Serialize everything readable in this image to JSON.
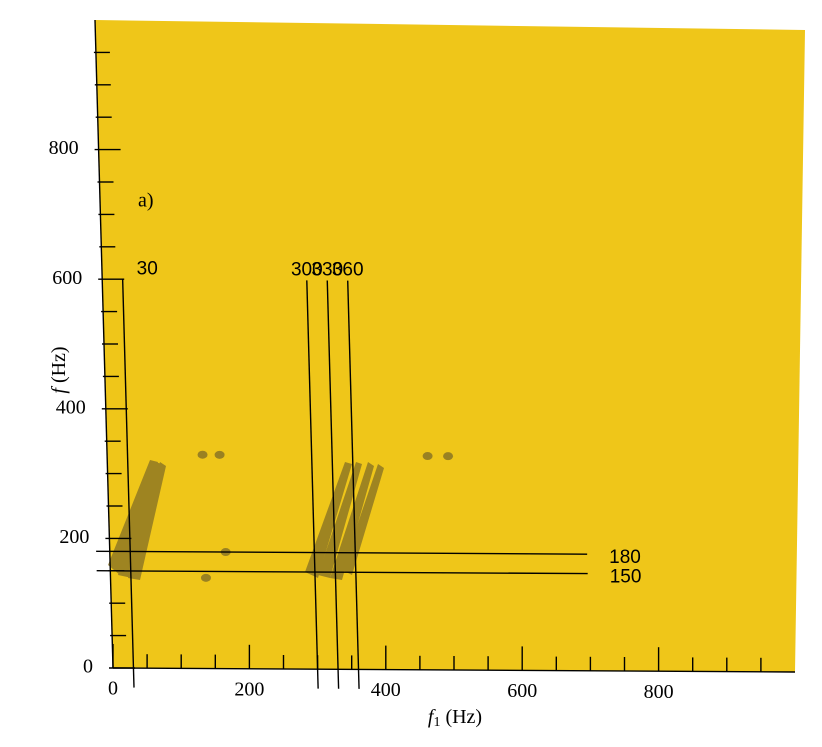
{
  "chart_data": {
    "type": "bispectrum",
    "panel_label": "a)",
    "xlabel": {
      "symbol": "f",
      "subscript": "1",
      "unit": "(Hz)"
    },
    "ylabel": {
      "symbol": "f",
      "unit": "(Hz)"
    },
    "xlim": [
      0,
      1000
    ],
    "ylim": [
      0,
      1000
    ],
    "xticks": [
      0,
      200,
      400,
      600,
      800
    ],
    "yticks": [
      0,
      200,
      400,
      600,
      800
    ],
    "xminorticks": [
      50,
      100,
      150,
      250,
      300,
      350,
      450,
      500,
      550,
      650,
      700,
      750,
      850,
      900,
      950
    ],
    "yminorticks": [
      50,
      100,
      150,
      250,
      300,
      350,
      450,
      500,
      550,
      650,
      700,
      750,
      850,
      900,
      950
    ],
    "vlines": [
      {
        "value": 30,
        "label": "30"
      },
      {
        "value": 300,
        "label": "300"
      },
      {
        "value": 330,
        "label": "330"
      },
      {
        "value": 360,
        "label": "360"
      }
    ],
    "hlines": [
      {
        "value": 180,
        "label": "180"
      },
      {
        "value": 150,
        "label": "150"
      }
    ],
    "peaks": {
      "x": [
        140,
        165,
        170,
        140,
        470,
        500
      ],
      "y": [
        330,
        330,
        180,
        140,
        330,
        330
      ]
    },
    "plane_color": "#efc619",
    "peak_color": "#8a7424"
  }
}
